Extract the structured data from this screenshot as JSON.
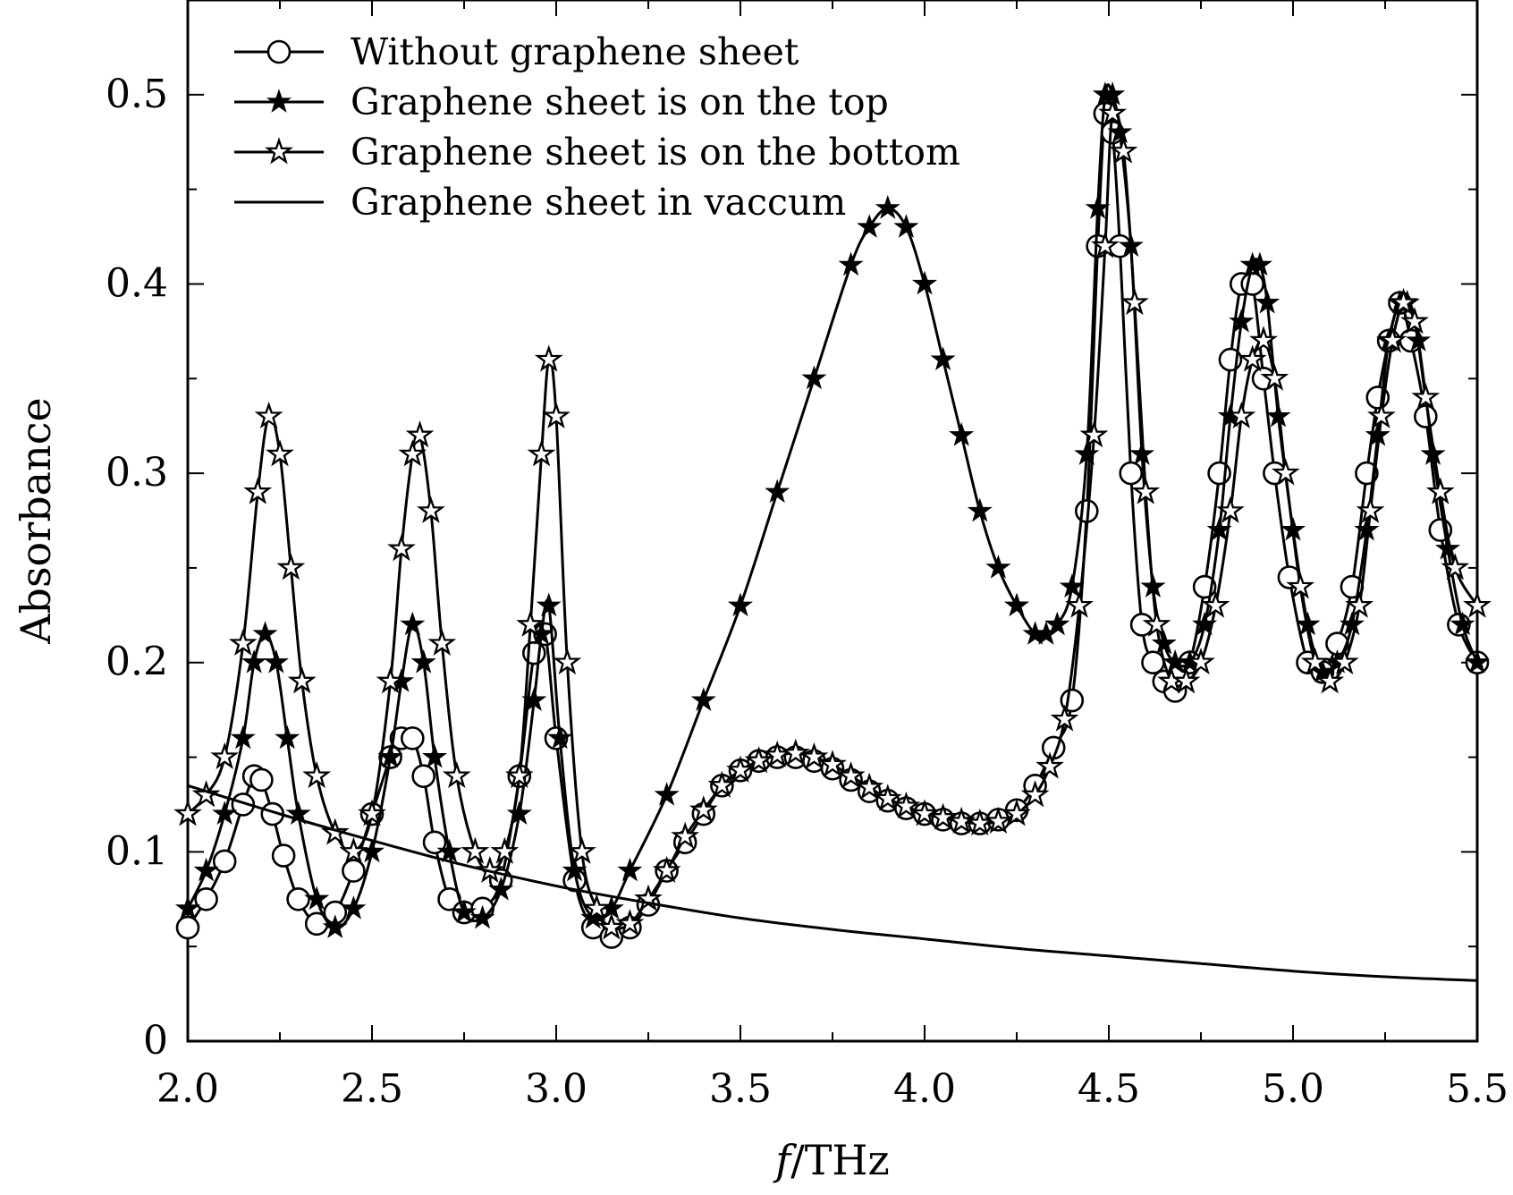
{
  "chart_data": {
    "type": "line",
    "xlabel_var": "f",
    "xlabel_unit": "/THz",
    "ylabel": "Absorbance",
    "xlim": [
      2.0,
      5.5
    ],
    "ylim": [
      0,
      0.55
    ],
    "xticks": [
      2.0,
      2.5,
      3.0,
      3.5,
      4.0,
      4.5,
      5.0,
      5.5
    ],
    "xtick_labels": [
      "2.0",
      "2.5",
      "3.0",
      "3.5",
      "4.0",
      "4.5",
      "5.0",
      "5.5"
    ],
    "yticks": [
      0,
      0.1,
      0.2,
      0.3,
      0.4,
      0.5
    ],
    "ytick_labels": [
      "0",
      "0.1",
      "0.2",
      "0.3",
      "0.4",
      "0.5"
    ],
    "legend_position": "top-left",
    "series": [
      {
        "name": "Without graphene sheet",
        "marker": "open-circle",
        "x": [
          2.0,
          2.05,
          2.1,
          2.15,
          2.18,
          2.2,
          2.23,
          2.26,
          2.3,
          2.35,
          2.4,
          2.45,
          2.5,
          2.55,
          2.58,
          2.61,
          2.64,
          2.67,
          2.71,
          2.75,
          2.8,
          2.85,
          2.9,
          2.94,
          2.97,
          3.0,
          3.05,
          3.1,
          3.15,
          3.2,
          3.25,
          3.3,
          3.35,
          3.4,
          3.45,
          3.5,
          3.55,
          3.6,
          3.65,
          3.7,
          3.75,
          3.8,
          3.85,
          3.9,
          3.95,
          4.0,
          4.05,
          4.1,
          4.15,
          4.2,
          4.25,
          4.3,
          4.35,
          4.4,
          4.44,
          4.47,
          4.49,
          4.51,
          4.53,
          4.56,
          4.59,
          4.62,
          4.65,
          4.68,
          4.72,
          4.76,
          4.8,
          4.83,
          4.86,
          4.89,
          4.92,
          4.95,
          4.99,
          5.04,
          5.08,
          5.12,
          5.16,
          5.2,
          5.23,
          5.26,
          5.29,
          5.32,
          5.36,
          5.4,
          5.45,
          5.5
        ],
        "y": [
          0.06,
          0.075,
          0.095,
          0.125,
          0.14,
          0.138,
          0.12,
          0.098,
          0.075,
          0.062,
          0.068,
          0.09,
          0.12,
          0.15,
          0.16,
          0.16,
          0.14,
          0.105,
          0.075,
          0.068,
          0.07,
          0.085,
          0.14,
          0.205,
          0.215,
          0.16,
          0.085,
          0.06,
          0.055,
          0.06,
          0.072,
          0.09,
          0.105,
          0.12,
          0.135,
          0.143,
          0.148,
          0.15,
          0.15,
          0.148,
          0.144,
          0.138,
          0.132,
          0.127,
          0.123,
          0.12,
          0.117,
          0.115,
          0.115,
          0.117,
          0.122,
          0.135,
          0.155,
          0.18,
          0.28,
          0.42,
          0.49,
          0.48,
          0.42,
          0.3,
          0.22,
          0.2,
          0.19,
          0.185,
          0.2,
          0.24,
          0.3,
          0.36,
          0.4,
          0.4,
          0.35,
          0.3,
          0.245,
          0.2,
          0.195,
          0.21,
          0.24,
          0.3,
          0.34,
          0.37,
          0.39,
          0.37,
          0.33,
          0.27,
          0.22,
          0.2
        ]
      },
      {
        "name": "Graphene sheet is on the top",
        "marker": "filled-star",
        "x": [
          2.0,
          2.05,
          2.1,
          2.15,
          2.18,
          2.21,
          2.24,
          2.27,
          2.3,
          2.35,
          2.4,
          2.45,
          2.5,
          2.55,
          2.58,
          2.61,
          2.64,
          2.67,
          2.71,
          2.75,
          2.8,
          2.85,
          2.9,
          2.94,
          2.96,
          2.98,
          3.01,
          3.05,
          3.1,
          3.15,
          3.2,
          3.3,
          3.4,
          3.5,
          3.6,
          3.7,
          3.8,
          3.85,
          3.9,
          3.95,
          4.0,
          4.05,
          4.1,
          4.15,
          4.2,
          4.25,
          4.3,
          4.33,
          4.36,
          4.4,
          4.44,
          4.47,
          4.49,
          4.51,
          4.53,
          4.56,
          4.59,
          4.62,
          4.65,
          4.68,
          4.72,
          4.76,
          4.8,
          4.83,
          4.86,
          4.89,
          4.91,
          4.93,
          4.96,
          5.0,
          5.04,
          5.08,
          5.12,
          5.16,
          5.2,
          5.23,
          5.26,
          5.29,
          5.31,
          5.34,
          5.38,
          5.42,
          5.46,
          5.5
        ],
        "y": [
          0.07,
          0.09,
          0.12,
          0.16,
          0.2,
          0.215,
          0.2,
          0.16,
          0.12,
          0.075,
          0.06,
          0.07,
          0.1,
          0.15,
          0.19,
          0.22,
          0.2,
          0.15,
          0.1,
          0.068,
          0.065,
          0.08,
          0.12,
          0.18,
          0.215,
          0.23,
          0.16,
          0.09,
          0.065,
          0.07,
          0.09,
          0.13,
          0.18,
          0.23,
          0.29,
          0.35,
          0.41,
          0.43,
          0.44,
          0.43,
          0.4,
          0.36,
          0.32,
          0.28,
          0.25,
          0.23,
          0.215,
          0.215,
          0.22,
          0.24,
          0.31,
          0.44,
          0.5,
          0.5,
          0.48,
          0.42,
          0.31,
          0.24,
          0.21,
          0.2,
          0.2,
          0.22,
          0.27,
          0.33,
          0.38,
          0.41,
          0.41,
          0.39,
          0.33,
          0.27,
          0.22,
          0.195,
          0.2,
          0.22,
          0.27,
          0.32,
          0.37,
          0.39,
          0.39,
          0.37,
          0.31,
          0.26,
          0.22,
          0.2
        ]
      },
      {
        "name": "Graphene sheet is on the bottom",
        "marker": "open-star",
        "x": [
          2.0,
          2.05,
          2.1,
          2.15,
          2.19,
          2.22,
          2.25,
          2.28,
          2.31,
          2.35,
          2.4,
          2.45,
          2.5,
          2.55,
          2.58,
          2.61,
          2.63,
          2.66,
          2.69,
          2.73,
          2.78,
          2.82,
          2.86,
          2.9,
          2.93,
          2.96,
          2.98,
          3.0,
          3.03,
          3.07,
          3.11,
          3.15,
          3.2,
          3.25,
          3.3,
          3.35,
          3.4,
          3.45,
          3.5,
          3.55,
          3.6,
          3.65,
          3.7,
          3.75,
          3.8,
          3.85,
          3.9,
          3.95,
          4.0,
          4.05,
          4.1,
          4.15,
          4.2,
          4.25,
          4.3,
          4.34,
          4.38,
          4.42,
          4.46,
          4.49,
          4.51,
          4.54,
          4.57,
          4.6,
          4.63,
          4.67,
          4.71,
          4.75,
          4.79,
          4.83,
          4.86,
          4.89,
          4.92,
          4.95,
          4.98,
          5.02,
          5.06,
          5.1,
          5.14,
          5.18,
          5.21,
          5.24,
          5.27,
          5.3,
          5.33,
          5.36,
          5.4,
          5.44,
          5.5
        ],
        "y": [
          0.12,
          0.13,
          0.15,
          0.21,
          0.29,
          0.33,
          0.31,
          0.25,
          0.19,
          0.14,
          0.11,
          0.1,
          0.12,
          0.19,
          0.26,
          0.31,
          0.32,
          0.28,
          0.21,
          0.14,
          0.1,
          0.09,
          0.1,
          0.14,
          0.22,
          0.31,
          0.36,
          0.33,
          0.2,
          0.1,
          0.07,
          0.06,
          0.062,
          0.075,
          0.09,
          0.108,
          0.122,
          0.135,
          0.143,
          0.148,
          0.151,
          0.152,
          0.15,
          0.146,
          0.14,
          0.134,
          0.128,
          0.124,
          0.12,
          0.118,
          0.116,
          0.115,
          0.116,
          0.12,
          0.13,
          0.145,
          0.17,
          0.23,
          0.32,
          0.42,
          0.49,
          0.47,
          0.39,
          0.29,
          0.22,
          0.19,
          0.19,
          0.2,
          0.23,
          0.28,
          0.33,
          0.36,
          0.37,
          0.35,
          0.3,
          0.24,
          0.2,
          0.19,
          0.2,
          0.23,
          0.28,
          0.33,
          0.37,
          0.39,
          0.38,
          0.34,
          0.29,
          0.25,
          0.23
        ]
      },
      {
        "name": "Graphene sheet in vaccum",
        "marker": "none",
        "x": [
          2.0,
          2.25,
          2.5,
          2.75,
          3.0,
          3.25,
          3.5,
          3.75,
          4.0,
          4.25,
          4.5,
          4.75,
          5.0,
          5.25,
          5.5
        ],
        "y": [
          0.135,
          0.12,
          0.106,
          0.093,
          0.082,
          0.073,
          0.065,
          0.059,
          0.054,
          0.049,
          0.045,
          0.041,
          0.037,
          0.034,
          0.032
        ]
      }
    ]
  }
}
